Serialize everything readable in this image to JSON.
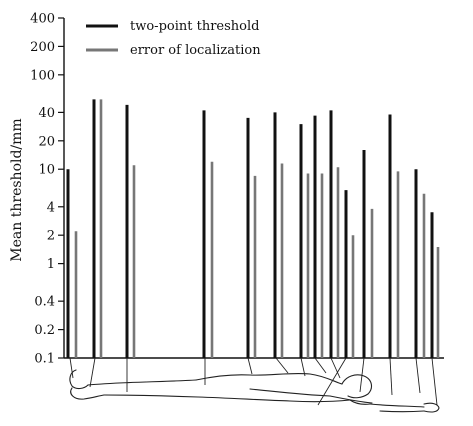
{
  "chart_data": {
    "type": "bar",
    "yscale": "log",
    "ylabel": "Mean threshold/mm",
    "ylim": [
      0.1,
      400
    ],
    "yticks": [
      {
        "value": 0.1,
        "label": "0.1"
      },
      {
        "value": 0.2,
        "label": "0.2"
      },
      {
        "value": 0.4,
        "label": "0.4"
      },
      {
        "value": 1,
        "label": "1"
      },
      {
        "value": 2,
        "label": "2"
      },
      {
        "value": 4,
        "label": "4"
      },
      {
        "value": 10,
        "label": "10"
      },
      {
        "value": 20,
        "label": "20"
      },
      {
        "value": 40,
        "label": "40"
      },
      {
        "value": 100,
        "label": "100"
      },
      {
        "value": 200,
        "label": "200"
      },
      {
        "value": 400,
        "label": "400"
      }
    ],
    "grid": false,
    "legend_position": "top-left",
    "series": [
      {
        "name": "two-point threshold",
        "color": "#111111"
      },
      {
        "name": "error of localization",
        "color": "#777777"
      }
    ],
    "bars": [
      {
        "series": 0,
        "value": 10
      },
      {
        "series": 1,
        "value": 2.2
      },
      {
        "series": 0,
        "value": 55
      },
      {
        "series": 1,
        "value": 55
      },
      {
        "series": 0,
        "value": 48
      },
      {
        "series": 1,
        "value": 11
      },
      {
        "series": 0,
        "value": 42
      },
      {
        "series": 1,
        "value": 12
      },
      {
        "series": 0,
        "value": 35
      },
      {
        "series": 1,
        "value": 8.5
      },
      {
        "series": 0,
        "value": 40
      },
      {
        "series": 1,
        "value": 11.5
      },
      {
        "series": 0,
        "value": 30
      },
      {
        "series": 1,
        "value": 9
      },
      {
        "series": 0,
        "value": 37
      },
      {
        "series": 1,
        "value": 9
      },
      {
        "series": 0,
        "value": 42
      },
      {
        "series": 1,
        "value": 10.5
      },
      {
        "series": 0,
        "value": 6
      },
      {
        "series": 1,
        "value": 2
      },
      {
        "series": 0,
        "value": 16
      },
      {
        "series": 1,
        "value": 3.8
      },
      {
        "series": 0,
        "value": 38
      },
      {
        "series": 1,
        "value": 9.5
      },
      {
        "series": 0,
        "value": 10
      },
      {
        "series": 1,
        "value": 5.5
      },
      {
        "series": 0,
        "value": 3.5
      },
      {
        "series": 1,
        "value": 1.5
      }
    ]
  }
}
